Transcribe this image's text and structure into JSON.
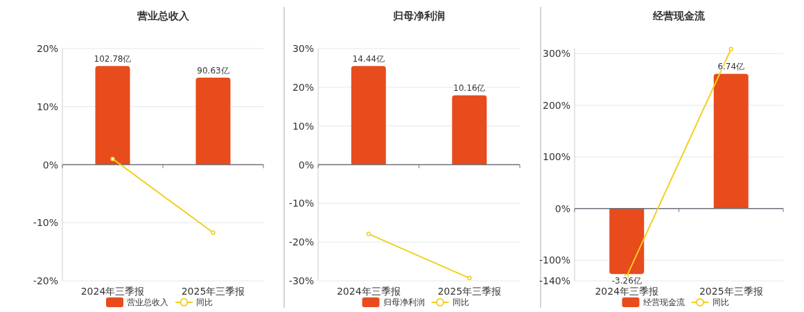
{
  "chart_data": [
    {
      "type": "bar",
      "title": "营业总收入",
      "categories": [
        "2024年三季报",
        "2025年三季报"
      ],
      "series": [
        {
          "name": "营业总收入",
          "axis": "y2",
          "color": "#e84b1c",
          "values": [
            102.78,
            90.63
          ],
          "value_labels": [
            "102.78亿",
            "90.63亿"
          ]
        },
        {
          "name": "同比",
          "type": "line",
          "color": "#f2cf1d",
          "values": [
            1,
            -11.7
          ]
        }
      ],
      "ylim": [
        -20,
        20
      ],
      "yticks": [
        {
          "value": -20,
          "label": "-20%"
        },
        {
          "value": -10,
          "label": "-10%"
        },
        {
          "value": 0,
          "label": "0%"
        },
        {
          "value": 10,
          "label": "10%"
        },
        {
          "value": 20,
          "label": "20%"
        }
      ],
      "y2lim": [
        -121,
        121
      ],
      "grid": "y",
      "legend": "bottom",
      "marker": "circle"
    },
    {
      "type": "bar",
      "title": "归母净利润",
      "categories": [
        "2024年三季报",
        "2025年三季报"
      ],
      "series": [
        {
          "name": "归母净利润",
          "axis": "y2",
          "color": "#e84b1c",
          "values": [
            14.44,
            10.16
          ],
          "value_labels": [
            "14.44亿",
            "10.16亿"
          ]
        },
        {
          "name": "同比",
          "type": "line",
          "color": "#f2cf1d",
          "values": [
            -17.9,
            -29.3
          ]
        }
      ],
      "ylim": [
        -30,
        30
      ],
      "yticks": [
        {
          "value": -30,
          "label": "-30%"
        },
        {
          "value": -20,
          "label": "-20%"
        },
        {
          "value": -10,
          "label": "-10%"
        },
        {
          "value": 0,
          "label": "0%"
        },
        {
          "value": 10,
          "label": "10%"
        },
        {
          "value": 20,
          "label": "20%"
        },
        {
          "value": 30,
          "label": "30%"
        }
      ],
      "y2lim": [
        -17,
        17
      ],
      "grid": "y",
      "legend": "bottom",
      "marker": "circle"
    },
    {
      "type": "bar",
      "title": "经营现金流",
      "categories": [
        "2024年三季报",
        "2025年三季报"
      ],
      "series": [
        {
          "name": "经营现金流",
          "axis": "y2",
          "color": "#e84b1c",
          "values": [
            -3.26,
            6.74
          ],
          "value_labels": [
            "-3.26亿",
            "6.74亿"
          ]
        },
        {
          "name": "同比",
          "type": "line",
          "color": "#f2cf1d",
          "values": [
            -131,
            309
          ]
        }
      ],
      "ylim": [
        -140,
        310
      ],
      "yticks": [
        {
          "value": -140,
          "label": "-140%"
        },
        {
          "value": -100,
          "label": "-100%"
        },
        {
          "value": 0,
          "label": "0%"
        },
        {
          "value": 100,
          "label": "100%"
        },
        {
          "value": 200,
          "label": "200%"
        },
        {
          "value": 300,
          "label": "300%"
        }
      ],
      "y2lim": [
        -3.6,
        8.0
      ],
      "grid": "y",
      "legend": "bottom",
      "marker": "circle"
    }
  ]
}
